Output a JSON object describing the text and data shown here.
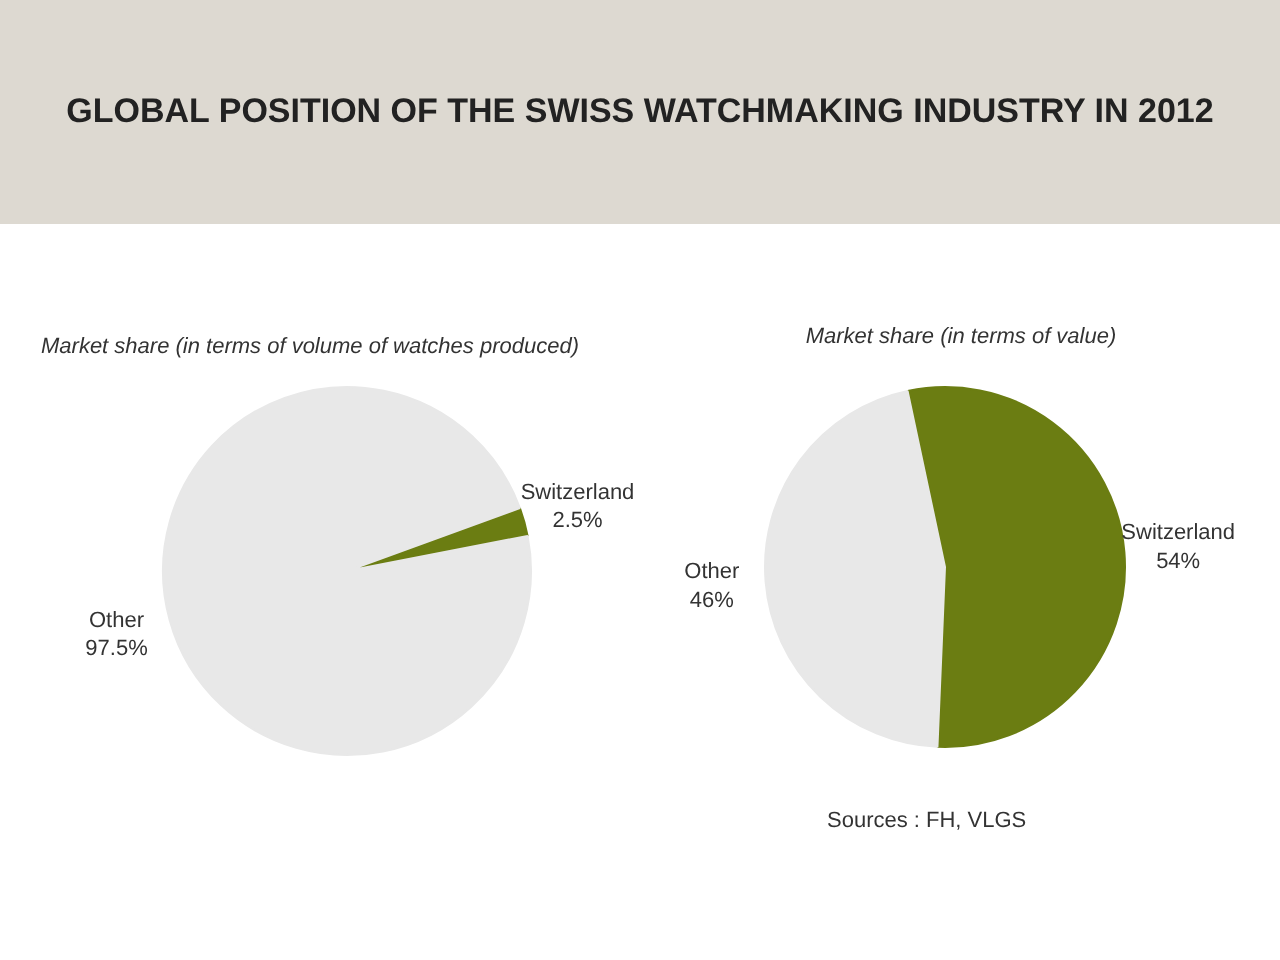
{
  "chart_data": [
    {
      "type": "pie",
      "title": "GLOBAL POSITION OF THE SWISS WATCHMAKING INDUSTRY IN 2012",
      "subtitle": "Market share (in terms of volume of watches produced)",
      "categories": [
        "Switzerland",
        "Other"
      ],
      "values": [
        2.5,
        97.5
      ],
      "colors": [
        "#6b7d12",
        "#e8e8e8"
      ],
      "value_labels": [
        "2.5%",
        "97.5%"
      ]
    },
    {
      "type": "pie",
      "subtitle": "Market share (in terms of value)",
      "categories": [
        "Switzerland",
        "Other"
      ],
      "values": [
        54,
        46
      ],
      "colors": [
        "#6b7d12",
        "#e8e8e8"
      ],
      "value_labels": [
        "54%",
        "46%"
      ],
      "annotations": [
        "Sources : FH, VLGS"
      ]
    }
  ]
}
